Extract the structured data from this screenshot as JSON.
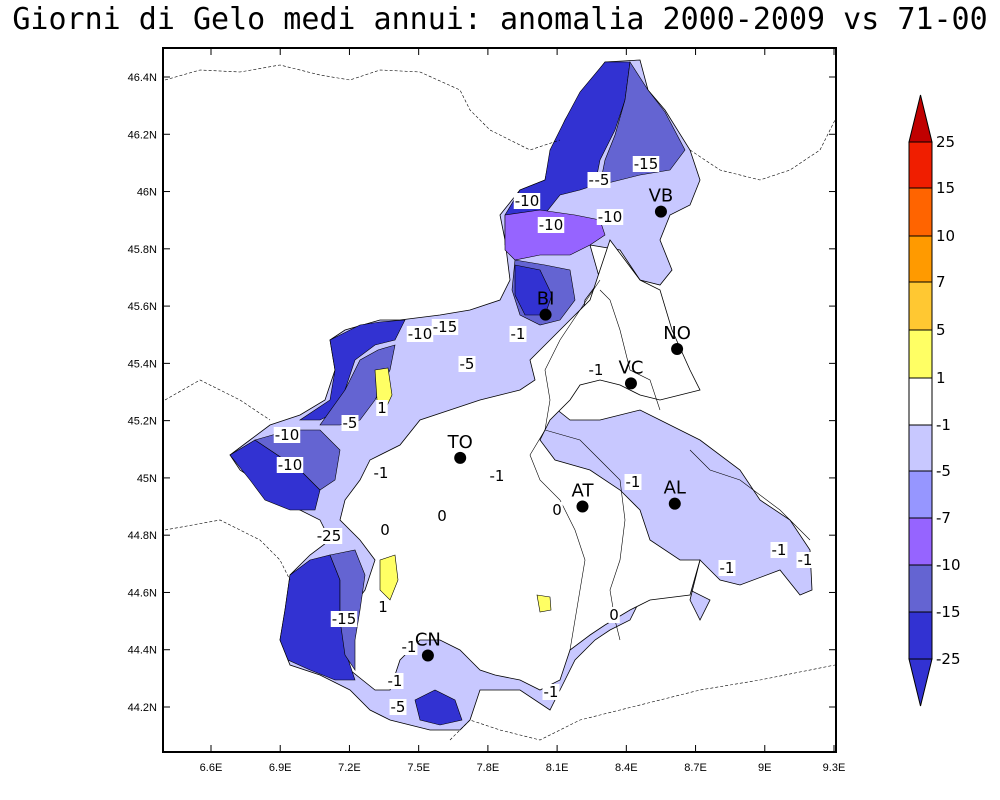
{
  "title": "Giorni di Gelo medi annui: anomalia 2000-2009 vs 71-00",
  "lat_labels": [
    "46.4N",
    "46.2N",
    "46N",
    "45.8N",
    "45.6N",
    "45.4N",
    "45.2N",
    "45N",
    "44.8N",
    "44.6N",
    "44.4N",
    "44.2N"
  ],
  "lon_labels": [
    "6.6E",
    "6.9E",
    "7.2E",
    "7.5E",
    "7.8E",
    "8.1E",
    "8.4E",
    "8.7E",
    "9E",
    "9.3E"
  ],
  "cities": [
    {
      "name": "VB",
      "lon": 8.55,
      "lat": 45.93
    },
    {
      "name": "BI",
      "lon": 8.05,
      "lat": 45.57
    },
    {
      "name": "NO",
      "lon": 8.62,
      "lat": 45.45
    },
    {
      "name": "VC",
      "lon": 8.42,
      "lat": 45.33
    },
    {
      "name": "TO",
      "lon": 7.68,
      "lat": 45.07
    },
    {
      "name": "AT",
      "lon": 8.21,
      "lat": 44.9
    },
    {
      "name": "AL",
      "lon": 8.61,
      "lat": 44.91
    },
    {
      "name": "CN",
      "lon": 7.54,
      "lat": 44.38
    }
  ],
  "contour_labels": [
    "-15",
    "-5",
    "-10",
    "-10",
    "-10",
    "-10",
    "-15",
    "-5",
    "-1",
    "-10",
    "-5",
    "-1",
    "-1",
    "-1",
    "-1",
    "-1",
    "-10",
    "-5",
    "-1",
    "-25",
    "-15",
    "-1",
    "-1",
    "-5",
    "-1",
    "-1",
    "1",
    "0",
    "0",
    "0",
    "0",
    "1"
  ],
  "colorbar": {
    "labels": [
      "25",
      "15",
      "10",
      "7",
      "5",
      "1",
      "-1",
      "-5",
      "-7",
      "-10",
      "-15",
      "-25"
    ],
    "colors": {
      "c25": "#c00000",
      "c15": "#f01e00",
      "c10": "#ff6400",
      "c7": "#ff9a00",
      "c5": "#ffc832",
      "c1": "#ffff64",
      "c0": "#ffffff",
      "cm1": "#c8c8ff",
      "cm5": "#9696ff",
      "cm7": "#9664ff",
      "cm10": "#6464d2",
      "cm15": "#3232d2",
      "cm25": "#3232d2"
    }
  }
}
